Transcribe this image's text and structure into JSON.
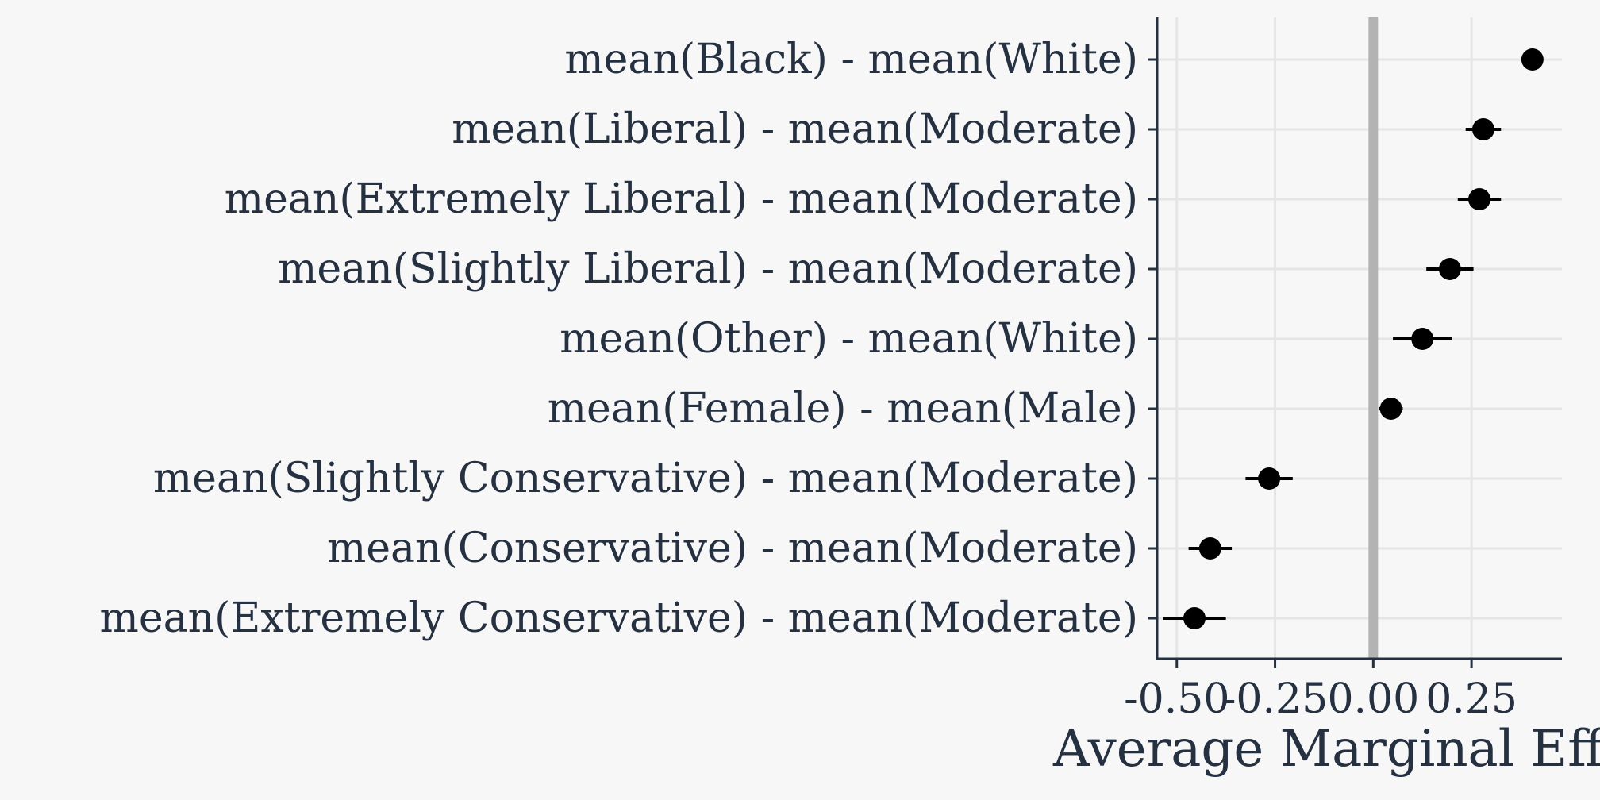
{
  "chart_data": {
    "type": "scatter",
    "subtype": "coefficient-plot",
    "title": "",
    "xlabel": "Average Marginal Effect",
    "ylabel": "",
    "xlim": [
      -0.55,
      0.48
    ],
    "xticks": [
      -0.5,
      -0.25,
      0.0,
      0.25
    ],
    "xtick_labels": [
      "-0.50",
      "-0.25",
      "0.00",
      "0.25"
    ],
    "reference_line": 0.0,
    "grid": true,
    "colors": {
      "text": "#253041",
      "point": "#000000",
      "reference": "#b3b3b3",
      "grid": "#e5e5e5",
      "background": "#f7f7f7"
    },
    "terms": [
      {
        "label": "mean(Black) - mean(White)",
        "estimate": 0.405,
        "low": 0.39,
        "high": 0.42
      },
      {
        "label": "mean(Liberal) - mean(Moderate)",
        "estimate": 0.28,
        "low": 0.235,
        "high": 0.325
      },
      {
        "label": "mean(Extremely Liberal) - mean(Moderate)",
        "estimate": 0.27,
        "low": 0.215,
        "high": 0.325
      },
      {
        "label": "mean(Slightly Liberal) - mean(Moderate)",
        "estimate": 0.195,
        "low": 0.135,
        "high": 0.255
      },
      {
        "label": "mean(Other) - mean(White)",
        "estimate": 0.125,
        "low": 0.05,
        "high": 0.2
      },
      {
        "label": "mean(Female) - mean(Male)",
        "estimate": 0.045,
        "low": 0.015,
        "high": 0.075
      },
      {
        "label": "mean(Slightly Conservative) - mean(Moderate)",
        "estimate": -0.265,
        "low": -0.325,
        "high": -0.205
      },
      {
        "label": "mean(Conservative) - mean(Moderate)",
        "estimate": -0.415,
        "low": -0.47,
        "high": -0.36
      },
      {
        "label": "mean(Extremely Conservative) - mean(Moderate)",
        "estimate": -0.455,
        "low": -0.535,
        "high": -0.375
      }
    ]
  }
}
